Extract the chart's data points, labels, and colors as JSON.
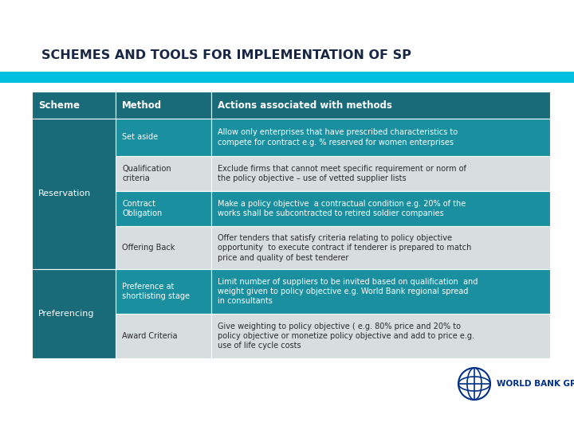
{
  "title": "SCHEMES AND TOOLS FOR IMPLEMENTATION OF SP",
  "title_color": "#1a2744",
  "title_fontsize": 11.5,
  "accent_bar_color": "#00BFDF",
  "bg_color": "#FFFFFF",
  "header_bg": "#1A6B7A",
  "header_text_color": "#FFFFFF",
  "scheme_col_bg": "#1A6B7A",
  "scheme_col_text": "#FFFFFF",
  "dark_row_bg": "#1A8FA0",
  "dark_row_text": "#FFFFFF",
  "light_row_bg": "#D8DEE0",
  "light_row_text": "#2a2a2a",
  "headers": [
    "Scheme",
    "Method",
    "Actions associated with methods"
  ],
  "rows": [
    {
      "scheme": "Reservation",
      "method": "Set aside",
      "action": "Allow only enterprises that have prescribed characteristics to\ncompete for contract e.g. % reserved for women enterprises",
      "row_style": "dark"
    },
    {
      "scheme": "",
      "method": "Qualification\ncriteria",
      "action": "Exclude firms that cannot meet specific requirement or norm of\nthe policy objective – use of vetted supplier lists",
      "row_style": "light"
    },
    {
      "scheme": "",
      "method": "Contract\nObligation",
      "action": "Make a policy objective  a contractual condition e.g. 20% of the\nworks shall be subcontracted to retired soldier companies",
      "row_style": "dark"
    },
    {
      "scheme": "",
      "method": "Offering Back",
      "action": "Offer tenders that satisfy criteria relating to policy objective\nopportunity  to execute contract if tenderer is prepared to match\nprice and quality of best tenderer",
      "row_style": "light"
    },
    {
      "scheme": "Preferencing",
      "method": "Preference at\nshortlisting stage",
      "action": "Limit number of suppliers to be invited based on qualification  and\nweight given to policy objective e.g. World Bank regional spread\nin consultants",
      "row_style": "dark"
    },
    {
      "scheme": "",
      "method": "Award Criteria",
      "action": "Give weighting to policy objective ( e.g. 80% price and 20% to\npolicy objective or monetize policy objective and add to price e.g.\nuse of life cycle costs",
      "row_style": "light"
    }
  ],
  "scheme_spans": [
    {
      "label": "Reservation",
      "start": 0,
      "end": 3
    },
    {
      "label": "Preferencing",
      "start": 4,
      "end": 5
    }
  ],
  "logo_text": "WORLD BANK GROUP",
  "logo_color": "#003087"
}
